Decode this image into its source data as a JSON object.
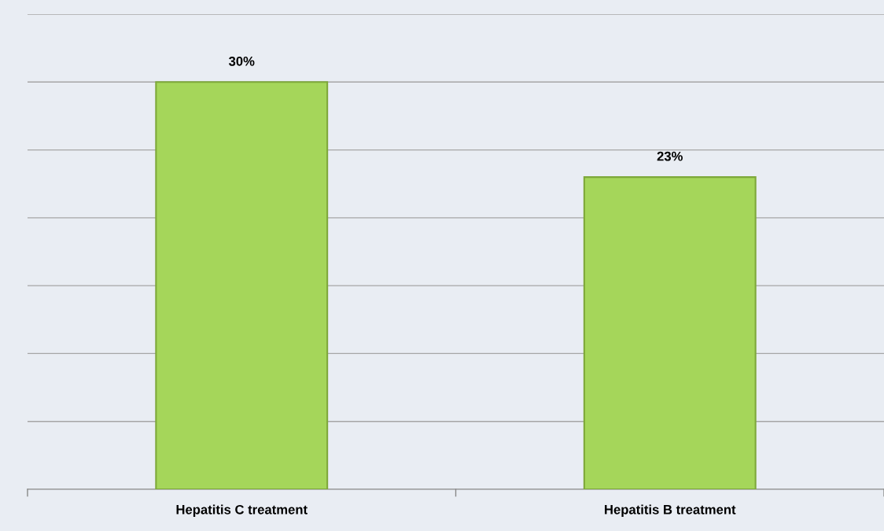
{
  "chart_data": {
    "type": "bar",
    "categories": [
      "Hepatitis C treatment",
      "Hepatitis B treatment"
    ],
    "values": [
      30,
      23
    ],
    "color": "#a5d65a",
    "value_labels": [
      "30%",
      "23%"
    ],
    "ylim": [
      0,
      35
    ],
    "yticks": [
      {
        "value": 0,
        "label": null
      },
      {
        "value": 5,
        "label": null
      },
      {
        "value": 10,
        "label": null
      },
      {
        "value": 15,
        "label": null
      },
      {
        "value": 20,
        "label": null
      },
      {
        "value": 25,
        "label": null
      },
      {
        "value": 30,
        "label": null
      },
      {
        "value": 35,
        "label": null
      }
    ],
    "grid": "y",
    "tick_labels": "x"
  }
}
